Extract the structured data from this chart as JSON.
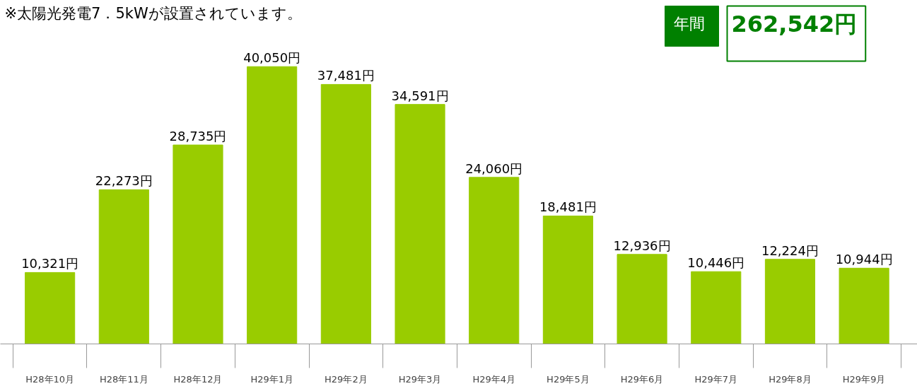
{
  "chart_data": {
    "type": "bar",
    "title": "※太陽光発電7．5kWが設置されています。",
    "categories": [
      "H28年10月",
      "H28年11月",
      "H28年12月",
      "H29年1月",
      "H29年2月",
      "H29年3月",
      "H29年4月",
      "H29年5月",
      "H29年6月",
      "H29年7月",
      "H29年8月",
      "H29年9月"
    ],
    "values": [
      10321,
      22273,
      28735,
      40050,
      37481,
      34591,
      24060,
      18481,
      12936,
      10446,
      12224,
      10944
    ],
    "value_labels": [
      "10,321円",
      "22,273円",
      "28,735円",
      "40,050円",
      "37,481円",
      "34,591円",
      "24,060円",
      "18,481円",
      "12,936円",
      "10,446円",
      "12,224円",
      "10,944円"
    ],
    "color": "#99cc00",
    "annotations": [
      "年間",
      "262,542円"
    ],
    "grid": false,
    "tick_labels": "x"
  }
}
